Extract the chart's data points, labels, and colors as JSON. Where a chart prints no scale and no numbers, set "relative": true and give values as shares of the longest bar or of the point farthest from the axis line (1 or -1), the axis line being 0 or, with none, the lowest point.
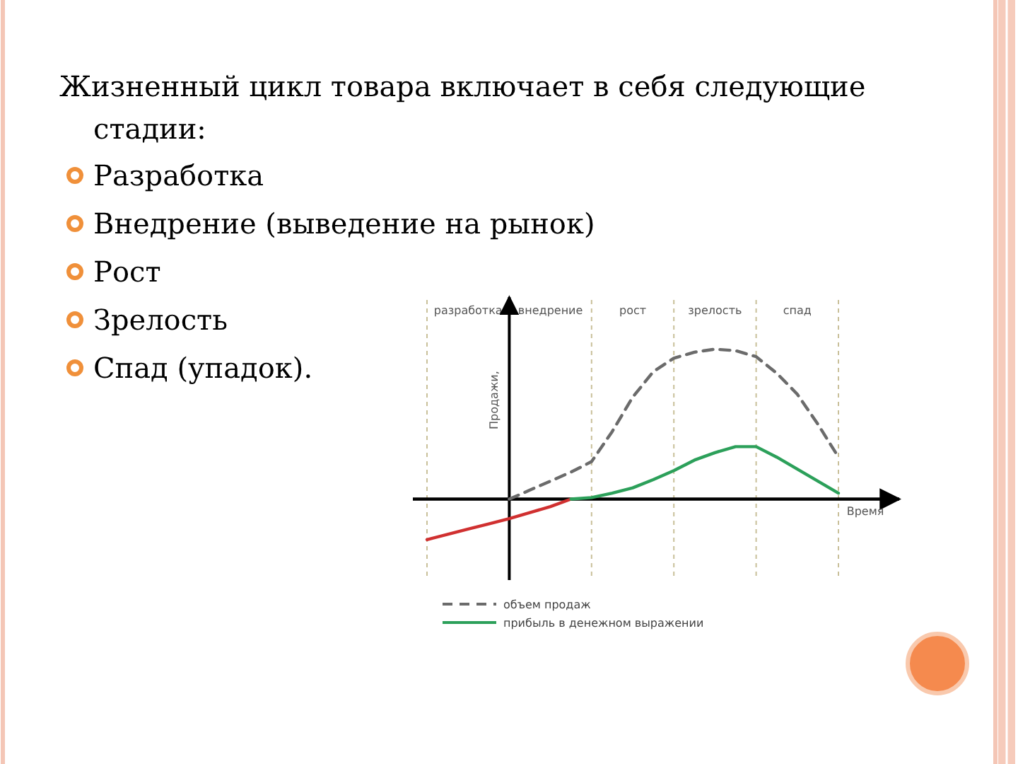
{
  "chart_data": {
    "type": "line",
    "relative": true,
    "title": "Жизненный цикл товара включает в себя следующие стадии:",
    "annotations": [
      "Разработка",
      "Внедрение (выведение на рынок)",
      "Рост",
      "Зрелость",
      "Спад (упадок)."
    ],
    "xlabel": "Время",
    "ylabel": "Продажи,",
    "legend": "bottom left",
    "grid": "x",
    "categories": [
      null,
      null,
      "разработка",
      null,
      null,
      null,
      "внедрение",
      null,
      null,
      null,
      "рост",
      null,
      null,
      null,
      "зрелость",
      null,
      null,
      null,
      "спад",
      null,
      null
    ],
    "series": [
      {
        "name": "объем продаж",
        "color": "#6b6b6b",
        "line_style": "dashed",
        "values": [
          null,
          null,
          null,
          null,
          0,
          0.06,
          0.12,
          0.18,
          0.25,
          0.45,
          0.68,
          0.85,
          0.94,
          0.98,
          1,
          0.99,
          0.95,
          0.84,
          0.7,
          0.5,
          0.28
        ]
      },
      {
        "color": "#d03030",
        "line_style": "solid",
        "values": [
          -0.27,
          -0.235,
          -0.2,
          -0.165,
          -0.13,
          -0.09,
          -0.05,
          0,
          null,
          null,
          null,
          null,
          null,
          null,
          null,
          null,
          null,
          null,
          null,
          null,
          null
        ]
      },
      {
        "name": "прибыль в денежном выражении",
        "color": "#2ca05a",
        "line_style": "solid",
        "values": [
          null,
          null,
          null,
          null,
          null,
          null,
          null,
          0,
          0.01,
          0.04,
          0.075,
          0.13,
          0.19,
          0.26,
          0.31,
          0.35,
          0.35,
          0.28,
          0.2,
          0.12,
          0.04
        ]
      }
    ]
  }
}
